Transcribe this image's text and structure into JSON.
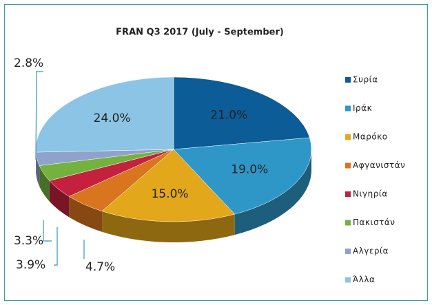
{
  "chart_data": {
    "type": "pie3d",
    "title": "FRAN Q3 2017 (July - September)",
    "categories": [
      "Συρία",
      "Ιράκ",
      "Μαρόκο",
      "Αφγανιστάν",
      "Νιγηρία",
      "Πακιστάν",
      "Αλγερία",
      "Άλλα"
    ],
    "values": [
      21.0,
      19.0,
      15.0,
      4.7,
      3.9,
      3.3,
      2.8,
      24.0
    ],
    "value_labels": [
      "21.0%",
      "19.0%",
      "15.0%",
      "4.7%",
      "3.9%",
      "3.3%",
      "2.8%",
      "24.0%"
    ],
    "colors": [
      "#0b5c97",
      "#2e97c8",
      "#e3a71b",
      "#d9741f",
      "#c4213f",
      "#74b23f",
      "#8ea2cc",
      "#8cc4e6"
    ],
    "legend": "right"
  }
}
